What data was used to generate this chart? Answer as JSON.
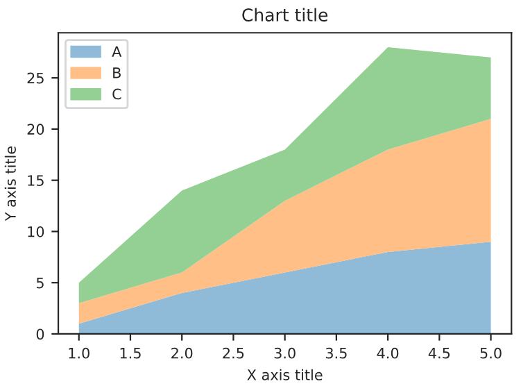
{
  "chart_data": {
    "type": "area",
    "title": "Chart title",
    "xlabel": "X axis title",
    "ylabel": "Y axis title",
    "x": [
      1,
      2,
      3,
      4,
      5
    ],
    "stacked": true,
    "series": [
      {
        "name": "A",
        "color": "#8fbbd9",
        "values": [
          1,
          4,
          6,
          8,
          9
        ]
      },
      {
        "name": "B",
        "color": "#ffbf86",
        "values": [
          2,
          2,
          7,
          10,
          12
        ]
      },
      {
        "name": "C",
        "color": "#94cf94",
        "values": [
          2,
          8,
          5,
          10,
          6
        ]
      }
    ],
    "xlim": [
      0.8,
      5.2
    ],
    "ylim": [
      0,
      29.4
    ],
    "xticks": [
      {
        "value": 1,
        "label": "1.0"
      },
      {
        "value": 1.5,
        "label": "1.5"
      },
      {
        "value": 2,
        "label": "2.0"
      },
      {
        "value": 2.5,
        "label": "2.5"
      },
      {
        "value": 3,
        "label": "3.0"
      },
      {
        "value": 3.5,
        "label": "3.5"
      },
      {
        "value": 4,
        "label": "4.0"
      },
      {
        "value": 4.5,
        "label": "4.5"
      },
      {
        "value": 5,
        "label": "5.0"
      }
    ],
    "yticks": [
      0,
      5,
      10,
      15,
      20,
      25
    ],
    "legend": "top left",
    "grid": false
  }
}
